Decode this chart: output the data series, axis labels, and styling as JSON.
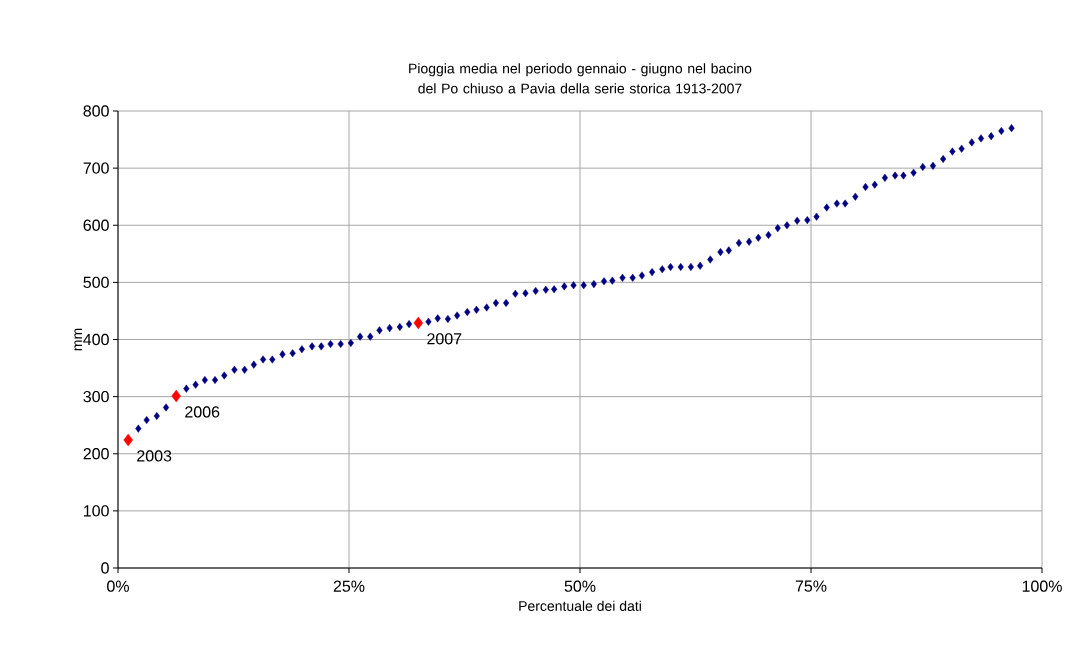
{
  "chart_data": {
    "type": "scatter",
    "title": "Pioggia media nel periodo gennaio - giugno nel bacino del Po chiuso a Pavia della serie storica 1913-2007",
    "xlabel": "Percentuale dei dati",
    "ylabel": "mm",
    "xlim": [
      0,
      100
    ],
    "xticks": [
      {
        "value": 0,
        "label": "0%"
      },
      {
        "value": 25,
        "label": "25%"
      },
      {
        "value": 50,
        "label": "50%"
      },
      {
        "value": 75,
        "label": "75%"
      },
      {
        "value": 100,
        "label": "100%"
      }
    ],
    "ylim": [
      0,
      800
    ],
    "yticks": [
      0,
      100,
      200,
      300,
      400,
      500,
      600,
      700,
      800
    ],
    "grid": true,
    "marker": "diamond",
    "series": [
      {
        "color": "#000080",
        "x": [
          2.2,
          3.1,
          4.2,
          5.2,
          7.4,
          8.4,
          9.4,
          10.5,
          11.5,
          12.6,
          13.7,
          14.7,
          15.7,
          16.7,
          17.8,
          18.9,
          19.9,
          21.0,
          22.0,
          23.0,
          24.1,
          25.2,
          26.2,
          27.3,
          28.3,
          29.4,
          30.5,
          31.5,
          33.6,
          34.6,
          35.7,
          36.7,
          37.8,
          38.8,
          39.9,
          40.9,
          42.0,
          43.0,
          44.1,
          45.2,
          46.3,
          47.2,
          48.3,
          49.3,
          50.4,
          51.5,
          52.6,
          53.5,
          54.6,
          55.7,
          56.7,
          57.8,
          58.9,
          59.8,
          60.9,
          62.0,
          63.0,
          64.1,
          65.2,
          66.1,
          67.2,
          68.3,
          69.3,
          70.4,
          71.4,
          72.4,
          73.5,
          74.6,
          75.6,
          76.7,
          77.8,
          78.7,
          79.8,
          80.9,
          81.9,
          83.0,
          84.1,
          85.0,
          86.1,
          87.1,
          88.2,
          89.3,
          90.3,
          91.3,
          92.4,
          93.4,
          94.5,
          95.6,
          96.7
        ],
        "values": [
          244,
          259,
          266,
          281,
          314,
          321,
          329,
          329,
          337,
          347,
          347,
          356,
          365,
          365,
          374,
          376,
          383,
          388,
          388,
          392,
          392,
          394,
          405,
          405,
          416,
          420,
          422,
          427,
          431,
          437,
          436,
          442,
          448,
          452,
          456,
          464,
          464,
          480,
          481,
          485,
          487,
          488,
          493,
          495,
          495,
          497,
          502,
          503,
          508,
          508,
          512,
          518,
          523,
          527,
          527,
          527,
          529,
          540,
          553,
          556,
          569,
          571,
          578,
          583,
          595,
          600,
          608,
          609,
          615,
          631,
          638,
          638,
          650,
          667,
          671,
          683,
          687,
          687,
          692,
          702,
          704,
          716,
          729,
          734,
          745,
          752,
          756,
          765,
          770
        ]
      },
      {
        "color": "#ff0000",
        "x": [
          1.1,
          6.3,
          32.5
        ],
        "values": [
          224,
          301,
          429
        ]
      }
    ],
    "annotations": [
      {
        "text": "2003",
        "x": 1.1,
        "y": 224
      },
      {
        "text": "2006",
        "x": 6.3,
        "y": 301
      },
      {
        "text": "2007",
        "x": 32.5,
        "y": 429
      }
    ]
  }
}
